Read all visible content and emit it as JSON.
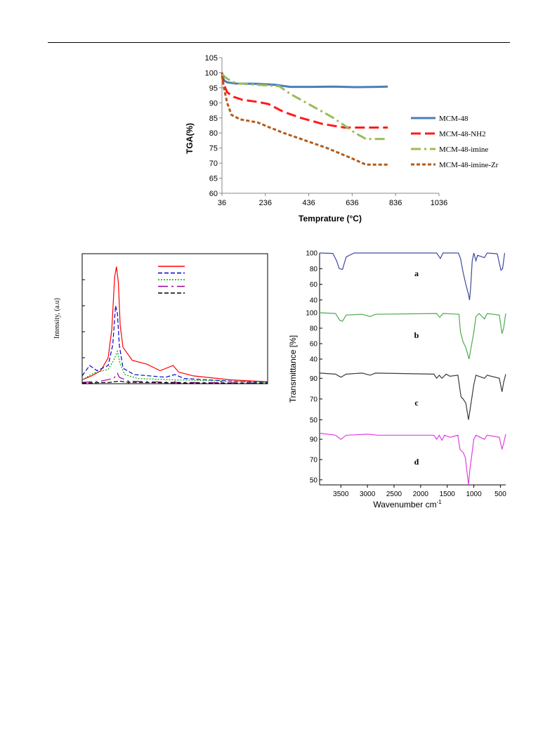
{
  "chart_data": [
    {
      "type": "line",
      "xlabel": "Temprature  (°C)",
      "ylabel": "TGA(%)",
      "xlim": [
        36,
        1036
      ],
      "ylim": [
        60,
        105
      ],
      "x_ticks": [
        "36",
        "236",
        "436",
        "636",
        "836",
        "1036"
      ],
      "y_ticks": [
        "60",
        "65",
        "70",
        "75",
        "80",
        "85",
        "90",
        "95",
        "100",
        "105"
      ],
      "legend": "right",
      "series": [
        {
          "name": "MCM-48",
          "color": "#4a7ebb",
          "dash": "solid",
          "points": [
            [
              36,
              100
            ],
            [
              45,
              97.5
            ],
            [
              60,
              96.8
            ],
            [
              100,
              96.4
            ],
            [
              200,
              96.3
            ],
            [
              280,
              96
            ],
            [
              350,
              95.3
            ],
            [
              450,
              95.3
            ],
            [
              550,
              95.4
            ],
            [
              650,
              95.2
            ],
            [
              750,
              95.3
            ],
            [
              800,
              95.4
            ]
          ]
        },
        {
          "name": "MCM-48-NH2",
          "color": "#ff1a1a",
          "dash": "long",
          "points": [
            [
              36,
              100
            ],
            [
              45,
              96
            ],
            [
              60,
              93.5
            ],
            [
              90,
              92
            ],
            [
              130,
              91
            ],
            [
              200,
              90.3
            ],
            [
              250,
              89.6
            ],
            [
              320,
              87
            ],
            [
              400,
              85
            ],
            [
              500,
              83
            ],
            [
              600,
              81.8
            ],
            [
              700,
              81.8
            ],
            [
              800,
              81.8
            ]
          ]
        },
        {
          "name": "MCM-48-imine",
          "color": "#9bbb59",
          "dash": "dashdot",
          "points": [
            [
              36,
              99.5
            ],
            [
              60,
              98
            ],
            [
              100,
              96.5
            ],
            [
              200,
              96
            ],
            [
              300,
              95.5
            ],
            [
              350,
              93
            ],
            [
              450,
              89
            ],
            [
              550,
              85
            ],
            [
              650,
              80
            ],
            [
              700,
              78
            ],
            [
              800,
              78
            ]
          ]
        },
        {
          "name": "MCM-48-imine-Zr",
          "color": "#b35b1a",
          "dash": "dense",
          "points": [
            [
              36,
              99
            ],
            [
              45,
              95
            ],
            [
              60,
              90
            ],
            [
              80,
              86
            ],
            [
              120,
              84.5
            ],
            [
              200,
              83.5
            ],
            [
              250,
              82
            ],
            [
              320,
              80
            ],
            [
              420,
              77.5
            ],
            [
              520,
              75
            ],
            [
              620,
              72
            ],
            [
              700,
              69.5
            ],
            [
              800,
              69.5
            ]
          ]
        }
      ]
    },
    {
      "type": "line",
      "ylabel": "Intensity, (a.u)",
      "legend": "top-right",
      "series": [
        {
          "color": "#ff0000",
          "dash": "solid",
          "points": [
            [
              0.0,
              0.03
            ],
            [
              0.05,
              0.06
            ],
            [
              0.1,
              0.1
            ],
            [
              0.14,
              0.2
            ],
            [
              0.16,
              0.42
            ],
            [
              0.175,
              0.82
            ],
            [
              0.185,
              0.9
            ],
            [
              0.195,
              0.78
            ],
            [
              0.205,
              0.45
            ],
            [
              0.22,
              0.28
            ],
            [
              0.27,
              0.18
            ],
            [
              0.35,
              0.15
            ],
            [
              0.42,
              0.1
            ],
            [
              0.49,
              0.14
            ],
            [
              0.52,
              0.09
            ],
            [
              0.6,
              0.06
            ],
            [
              0.8,
              0.03
            ],
            [
              1.0,
              0.015
            ]
          ]
        },
        {
          "color": "#0000cc",
          "dash": "dashed",
          "points": [
            [
              0.0,
              0.06
            ],
            [
              0.04,
              0.14
            ],
            [
              0.08,
              0.1
            ],
            [
              0.14,
              0.14
            ],
            [
              0.165,
              0.3
            ],
            [
              0.18,
              0.6
            ],
            [
              0.19,
              0.54
            ],
            [
              0.2,
              0.3
            ],
            [
              0.22,
              0.12
            ],
            [
              0.28,
              0.07
            ],
            [
              0.45,
              0.05
            ],
            [
              0.5,
              0.07
            ],
            [
              0.55,
              0.04
            ],
            [
              0.8,
              0.02
            ],
            [
              1.0,
              0.01
            ]
          ]
        },
        {
          "color": "#00aa00",
          "dash": "dotted",
          "points": [
            [
              0.0,
              0.03
            ],
            [
              0.06,
              0.08
            ],
            [
              0.14,
              0.11
            ],
            [
              0.17,
              0.18
            ],
            [
              0.19,
              0.25
            ],
            [
              0.205,
              0.15
            ],
            [
              0.23,
              0.07
            ],
            [
              0.3,
              0.04
            ],
            [
              0.5,
              0.03
            ],
            [
              1.0,
              0.01
            ]
          ]
        },
        {
          "color": "#990099",
          "dash": "dashdot",
          "points": [
            [
              0.0,
              0.01
            ],
            [
              0.1,
              0.02
            ],
            [
              0.17,
              0.04
            ],
            [
              0.19,
              0.08
            ],
            [
              0.2,
              0.05
            ],
            [
              0.25,
              0.02
            ],
            [
              0.5,
              0.01
            ],
            [
              1.0,
              0.005
            ]
          ]
        },
        {
          "color": "#000000",
          "dash": "dashed",
          "points": [
            [
              0.0,
              0.005
            ],
            [
              0.15,
              0.01
            ],
            [
              0.2,
              0.02
            ],
            [
              0.25,
              0.01
            ],
            [
              0.6,
              0.005
            ],
            [
              1.0,
              0.003
            ]
          ]
        }
      ]
    },
    {
      "type": "line",
      "xlabel": "Wavenumber cm",
      "xlabel_sup": "-1",
      "ylabel": "Transmittance [%]",
      "xlim": [
        3900,
        400
      ],
      "x_ticks": [
        3500,
        3000,
        2500,
        2000,
        1500,
        1000,
        500
      ],
      "panels": [
        {
          "label": "a",
          "color": "#3d4a9e",
          "ylim": [
            30,
            100
          ],
          "ticks": [
            "100",
            "80",
            "60",
            "40"
          ],
          "points": [
            [
              3900,
              100
            ],
            [
              3650,
              99.5
            ],
            [
              3580,
              90
            ],
            [
              3530,
              80
            ],
            [
              3470,
              79
            ],
            [
              3400,
              95
            ],
            [
              3250,
              100
            ],
            [
              1700,
              100
            ],
            [
              1630,
              93
            ],
            [
              1580,
              100
            ],
            [
              1290,
              100
            ],
            [
              1250,
              93
            ],
            [
              1200,
              75
            ],
            [
              1150,
              60
            ],
            [
              1100,
              47
            ],
            [
              1080,
              40
            ],
            [
              1060,
              55
            ],
            [
              1030,
              90
            ],
            [
              1000,
              100
            ],
            [
              960,
              90
            ],
            [
              930,
              97
            ],
            [
              800,
              94
            ],
            [
              750,
              100
            ],
            [
              560,
              99
            ],
            [
              490,
              78
            ],
            [
              460,
              80
            ],
            [
              420,
              100
            ]
          ]
        },
        {
          "label": "b",
          "color": "#4daa4d",
          "ylim": [
            30,
            100
          ],
          "ticks": [
            "100",
            "80",
            "60",
            "40"
          ],
          "points": [
            [
              3900,
              100
            ],
            [
              3600,
              99
            ],
            [
              3520,
              90
            ],
            [
              3470,
              89
            ],
            [
              3400,
              97
            ],
            [
              3100,
              98
            ],
            [
              2950,
              95
            ],
            [
              2850,
              98
            ],
            [
              1700,
              99
            ],
            [
              1640,
              94
            ],
            [
              1580,
              99
            ],
            [
              1280,
              98
            ],
            [
              1250,
              75
            ],
            [
              1200,
              62
            ],
            [
              1150,
              55
            ],
            [
              1090,
              40
            ],
            [
              1070,
              48
            ],
            [
              1000,
              75
            ],
            [
              960,
              95
            ],
            [
              900,
              99
            ],
            [
              800,
              92
            ],
            [
              750,
              99
            ],
            [
              520,
              97
            ],
            [
              470,
              73
            ],
            [
              440,
              80
            ],
            [
              400,
              99
            ]
          ]
        },
        {
          "label": "c",
          "color": "#3a3a3a",
          "ylim": [
            40,
            97
          ],
          "ticks": [
            "90",
            "70",
            "50"
          ],
          "points": [
            [
              3900,
              95
            ],
            [
              3600,
              94
            ],
            [
              3500,
              91
            ],
            [
              3400,
              94
            ],
            [
              3100,
              95
            ],
            [
              2950,
              93
            ],
            [
              2850,
              95
            ],
            [
              1750,
              94
            ],
            [
              1700,
              90
            ],
            [
              1650,
              93
            ],
            [
              1600,
              90
            ],
            [
              1520,
              94
            ],
            [
              1450,
              92
            ],
            [
              1300,
              93
            ],
            [
              1240,
              72
            ],
            [
              1200,
              70
            ],
            [
              1150,
              66
            ],
            [
              1100,
              50
            ],
            [
              1070,
              60
            ],
            [
              1000,
              84
            ],
            [
              960,
              93
            ],
            [
              800,
              90
            ],
            [
              750,
              93
            ],
            [
              520,
              90
            ],
            [
              470,
              77
            ],
            [
              440,
              86
            ],
            [
              400,
              94
            ]
          ]
        },
        {
          "label": "d",
          "color": "#e040e0",
          "ylim": [
            45,
            97
          ],
          "ticks": [
            "90",
            "70",
            "50"
          ],
          "points": [
            [
              3900,
              96
            ],
            [
              3600,
              94
            ],
            [
              3500,
              90
            ],
            [
              3400,
              94
            ],
            [
              3000,
              95
            ],
            [
              2800,
              94
            ],
            [
              1750,
              94
            ],
            [
              1700,
              90
            ],
            [
              1650,
              94
            ],
            [
              1600,
              89
            ],
            [
              1550,
              94
            ],
            [
              1450,
              92
            ],
            [
              1300,
              94
            ],
            [
              1260,
              80
            ],
            [
              1200,
              77
            ],
            [
              1160,
              72
            ],
            [
              1100,
              45
            ],
            [
              1075,
              60
            ],
            [
              1000,
              90
            ],
            [
              960,
              94
            ],
            [
              800,
              90
            ],
            [
              750,
              94
            ],
            [
              520,
              92
            ],
            [
              470,
              80
            ],
            [
              440,
              86
            ],
            [
              400,
              95
            ]
          ]
        }
      ]
    }
  ]
}
